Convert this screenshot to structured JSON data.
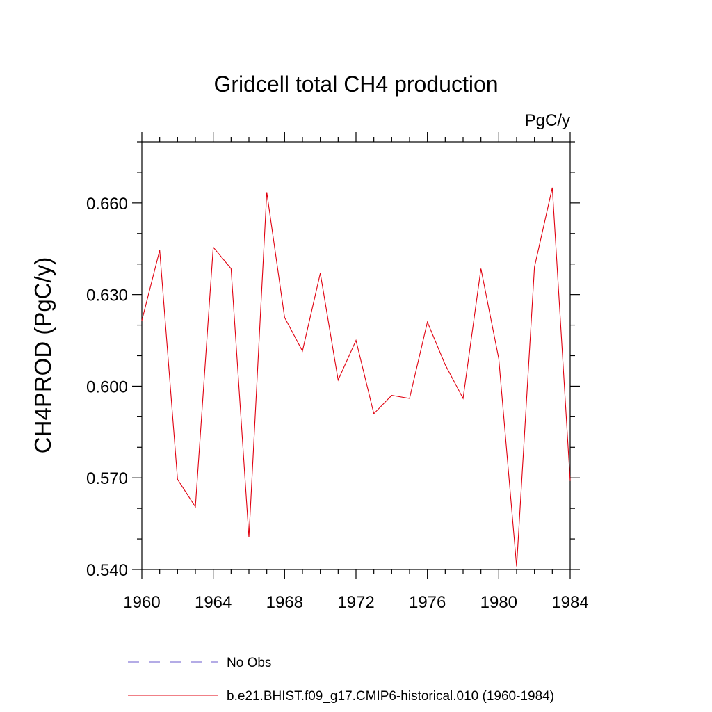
{
  "chart_data": {
    "type": "line",
    "title": "Gridcell total CH4 production",
    "units_label": "PgC/y",
    "ylabel": "CH4PROD  (PgC/y)",
    "xlabel": "",
    "xlim": [
      1960,
      1984
    ],
    "ylim": [
      0.54,
      0.68
    ],
    "x_ticks": [
      1960,
      1964,
      1968,
      1972,
      1976,
      1980,
      1984
    ],
    "x_tick_labels": [
      "1960",
      "1964",
      "1968",
      "1972",
      "1976",
      "1980",
      "1984"
    ],
    "y_ticks": [
      0.54,
      0.57,
      0.6,
      0.63,
      0.66
    ],
    "y_tick_labels": [
      "0.540",
      "0.570",
      "0.600",
      "0.630",
      "0.660"
    ],
    "grid": false,
    "legend_position": "bottom",
    "series": [
      {
        "name": "b.e21.BHIST.f09_g17.CMIP6-historical.010 (1960-1984)",
        "color": "#e0000f",
        "style": "solid",
        "x": [
          1960,
          1961,
          1962,
          1963,
          1964,
          1965,
          1966,
          1967,
          1968,
          1969,
          1970,
          1971,
          1972,
          1973,
          1974,
          1975,
          1976,
          1977,
          1978,
          1979,
          1980,
          1981,
          1982,
          1983,
          1984
        ],
        "values": [
          0.6215,
          0.6445,
          0.5695,
          0.5605,
          0.6455,
          0.6385,
          0.5505,
          0.6635,
          0.6225,
          0.6115,
          0.637,
          0.602,
          0.615,
          0.591,
          0.597,
          0.596,
          0.621,
          0.607,
          0.596,
          0.6385,
          0.609,
          0.541,
          0.639,
          0.665,
          0.569
        ]
      },
      {
        "name": "No Obs",
        "color": "#6a5acd",
        "style": "dashed",
        "x": [],
        "values": []
      }
    ]
  }
}
